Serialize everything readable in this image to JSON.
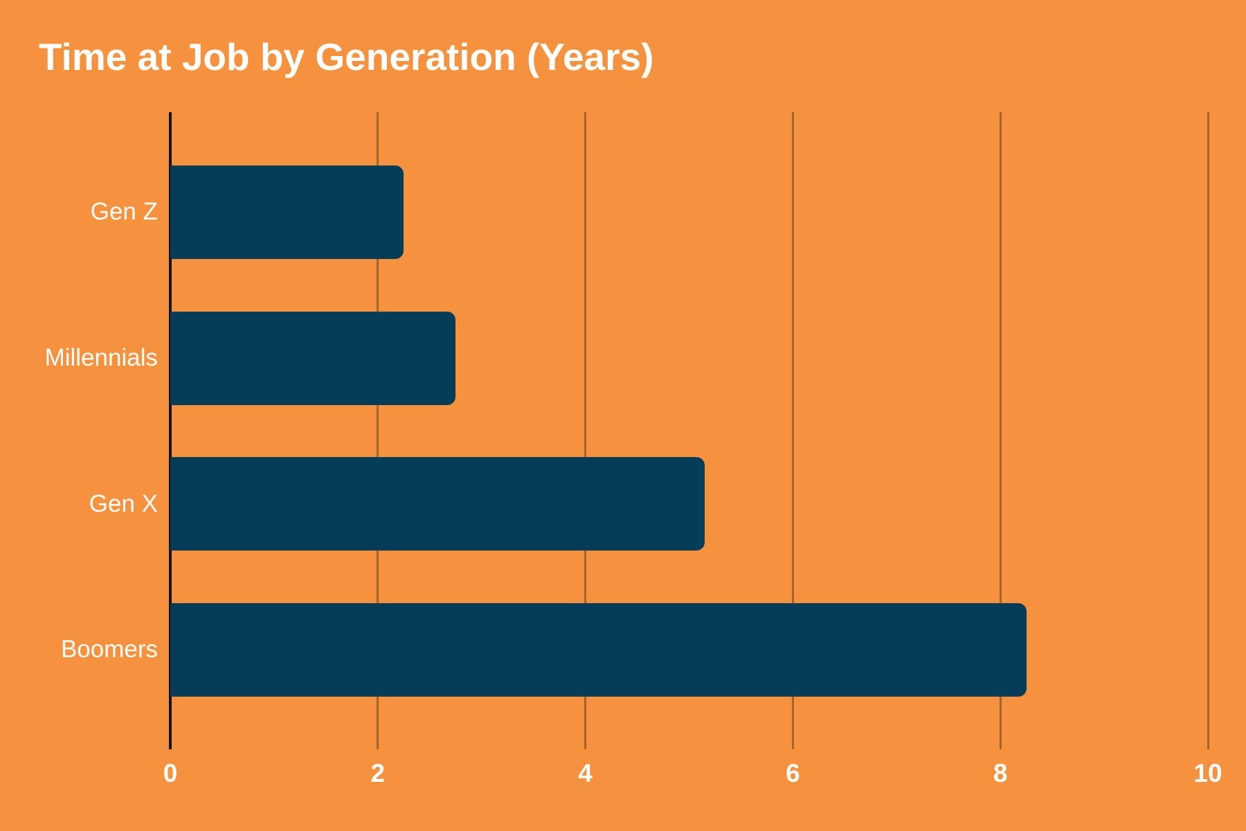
{
  "title": "Time at Job by Generation (Years)",
  "colors": {
    "background": "#F6913E",
    "bar": "#053D58",
    "gridline": "#A5642C",
    "axis_line": "#121212",
    "text": "#FFFFFF"
  },
  "chart_data": {
    "type": "bar",
    "orientation": "horizontal",
    "title": "Time at Job by Generation (Years)",
    "categories": [
      "Gen Z",
      "Millennials",
      "Gen X",
      "Boomers"
    ],
    "values": [
      2.25,
      2.75,
      5.15,
      8.25
    ],
    "xlabel": "",
    "ylabel": "",
    "xlim": [
      0,
      10
    ],
    "xticks": [
      0,
      2,
      4,
      6,
      8,
      10
    ],
    "grid": true,
    "legend": false,
    "value_unit": "years"
  }
}
